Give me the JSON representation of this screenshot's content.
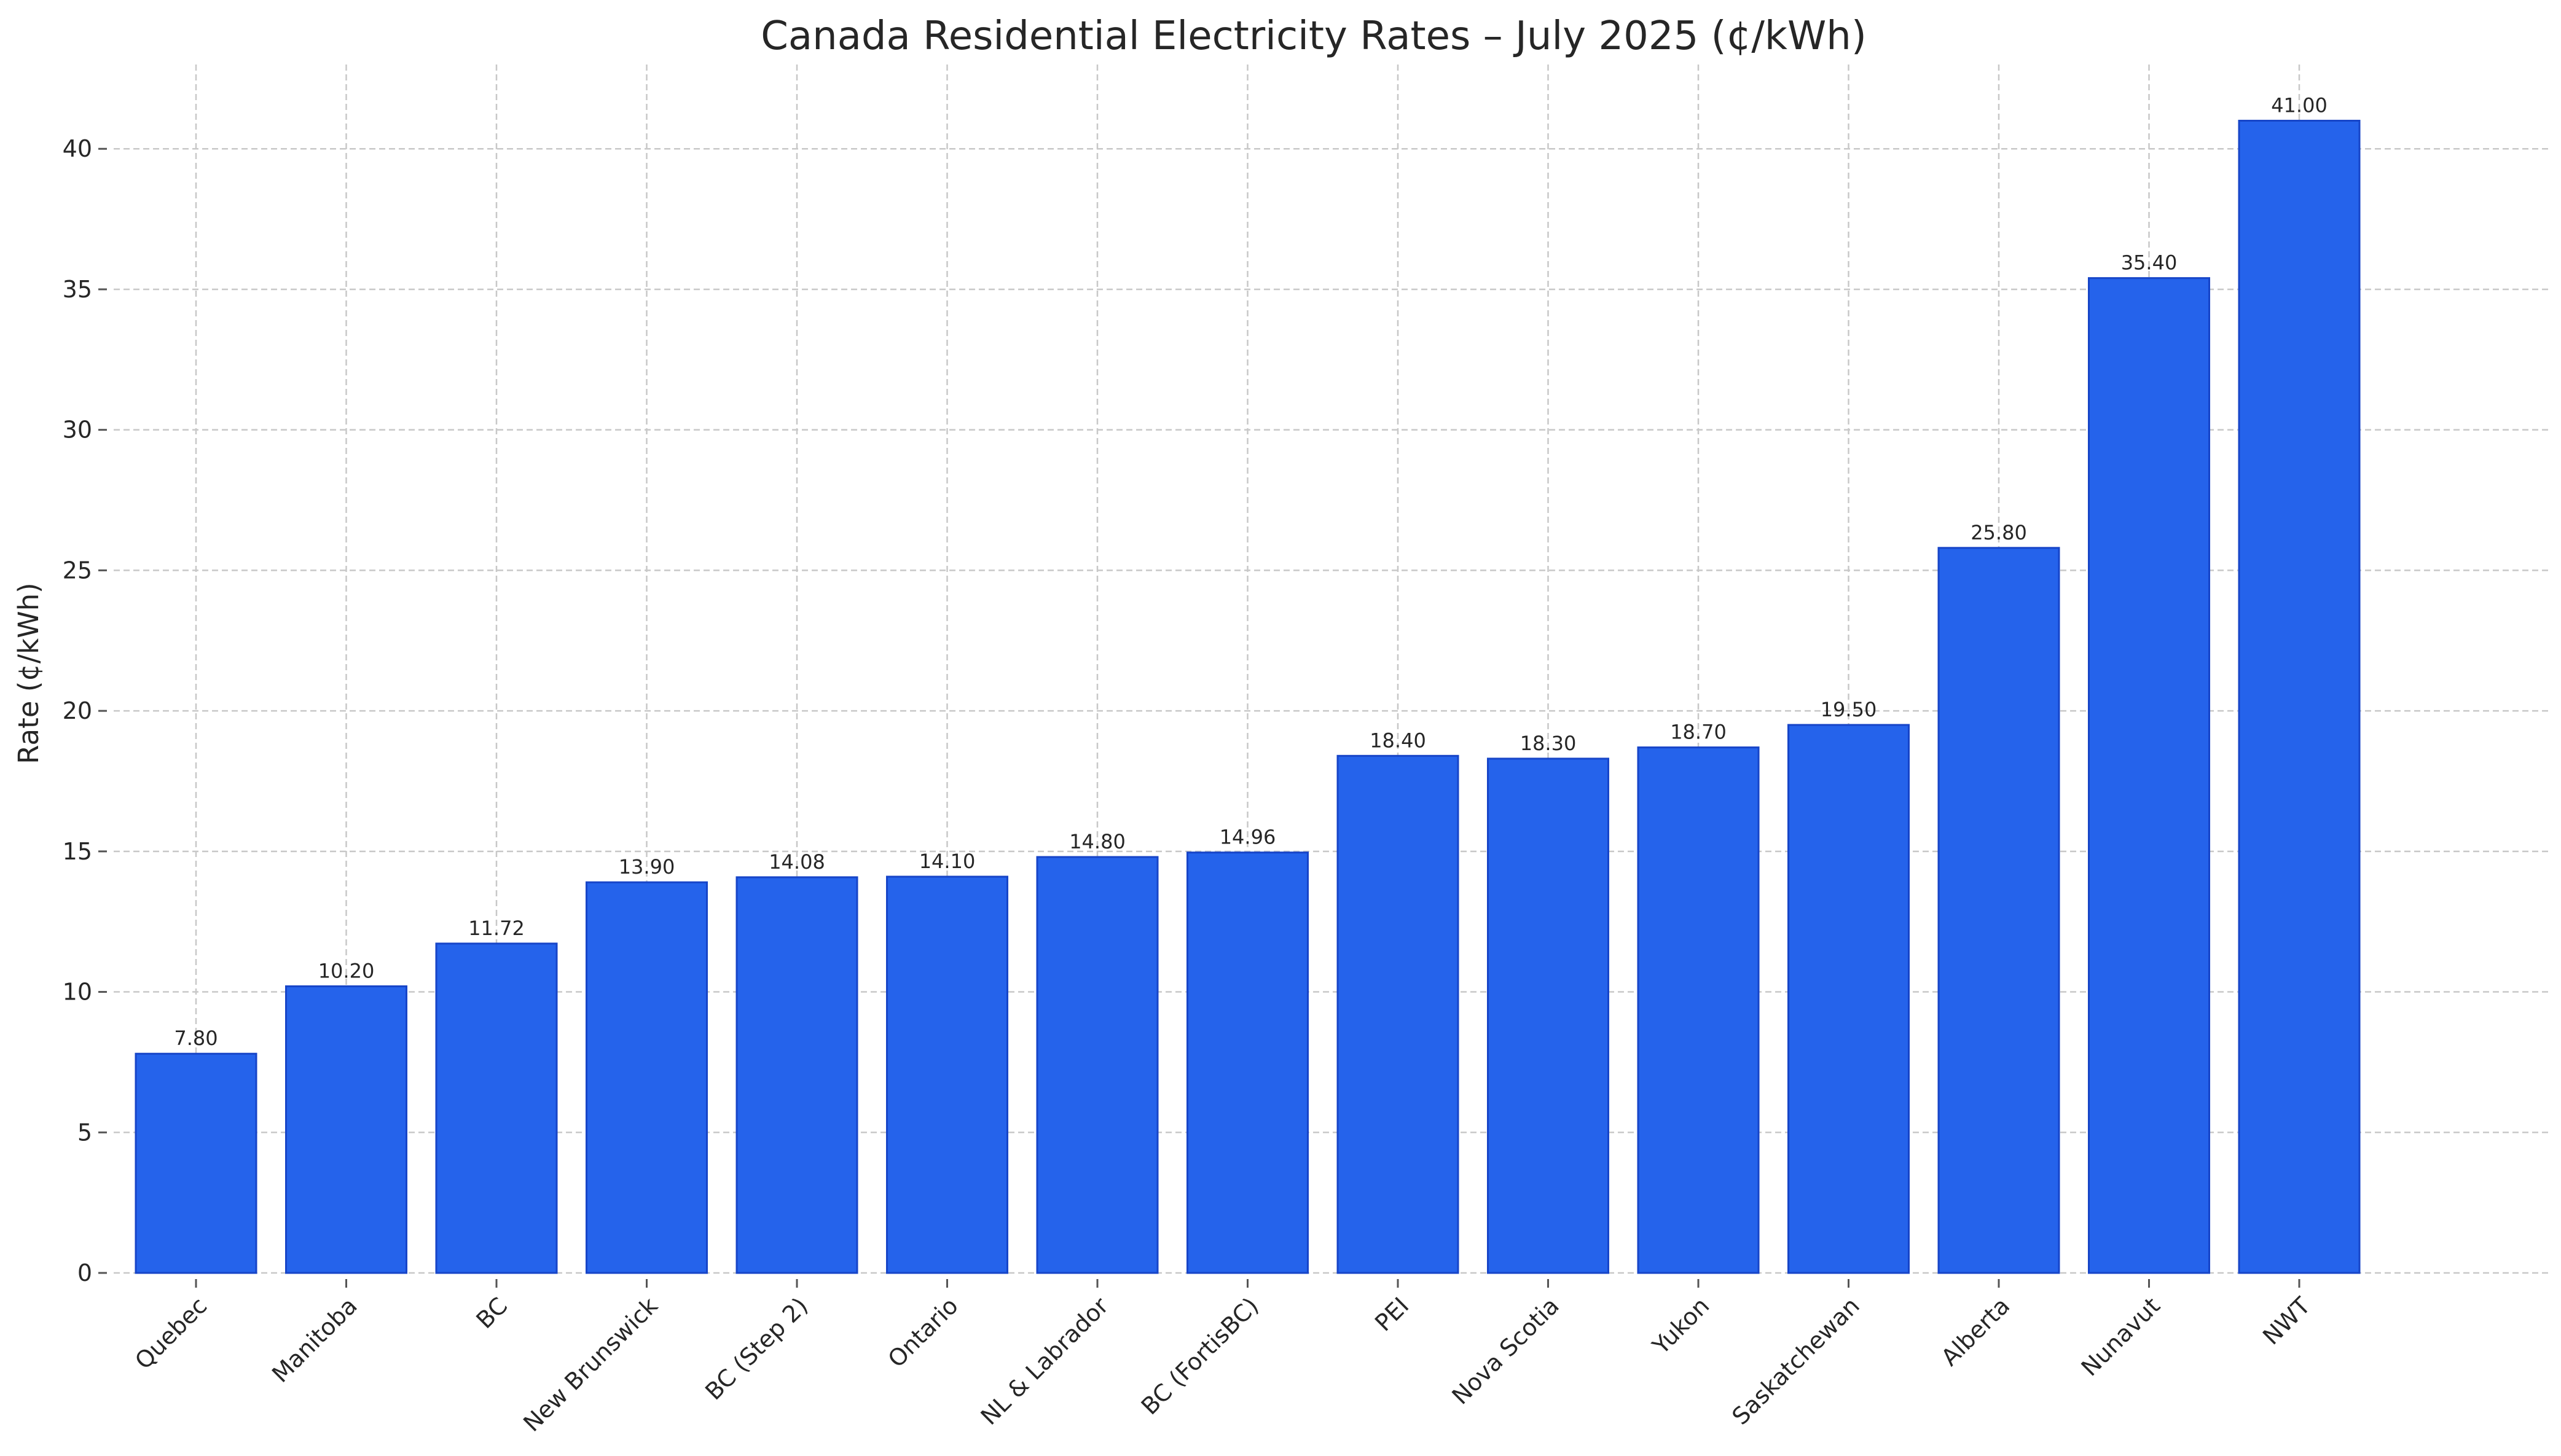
{
  "chart_data": {
    "type": "bar",
    "title": "Canada Residential Electricity Rates – July 2025 (¢/kWh)",
    "xlabel": "",
    "ylabel": "Rate (¢/kWh)",
    "ylim": [
      0,
      43
    ],
    "yticks": [
      "0",
      "5",
      "10",
      "15",
      "20",
      "25",
      "30",
      "35",
      "40"
    ],
    "grid": true,
    "legend": "none",
    "bar_color": "#2563eb",
    "categories": [
      "Quebec",
      "Manitoba",
      "BC",
      "New Brunswick",
      "BC (Step 2)",
      "Ontario",
      "NL & Labrador",
      "BC (FortisBC)",
      "PEI",
      "Nova Scotia",
      "Yukon",
      "Saskatchewan",
      "Alberta",
      "Nunavut",
      "NWT"
    ],
    "values": [
      7.8,
      10.2,
      11.72,
      13.9,
      14.08,
      14.1,
      14.8,
      14.96,
      18.4,
      18.3,
      18.7,
      19.5,
      25.8,
      35.4,
      41.0
    ],
    "value_labels": [
      "7.80",
      "10.20",
      "11.72",
      "13.90",
      "14.08",
      "14.10",
      "14.80",
      "14.96",
      "18.40",
      "18.30",
      "18.70",
      "19.50",
      "25.80",
      "35.40",
      "41.00"
    ]
  }
}
